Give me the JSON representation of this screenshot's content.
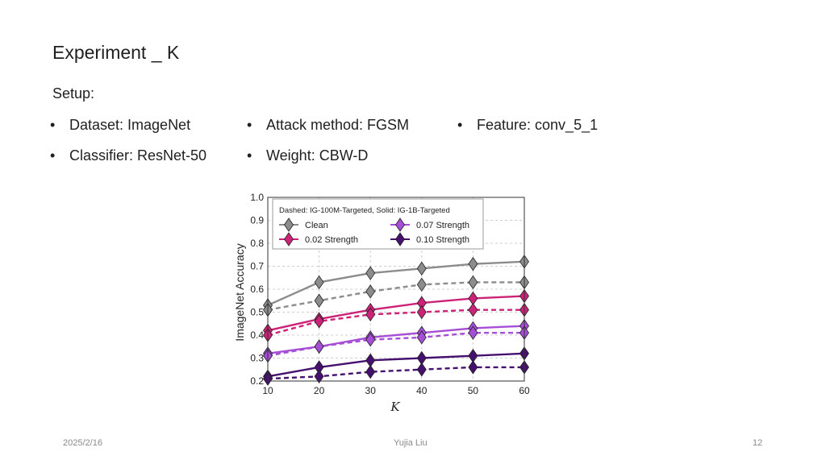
{
  "slide": {
    "title": "Experiment _ K",
    "setup_label": "Setup:",
    "bullet_glyph": "•",
    "bullets": [
      "Dataset: ImageNet",
      "Attack method: FGSM",
      "Feature: conv_5_1",
      "Classifier: ResNet-50",
      "Weight:  CBW-D"
    ]
  },
  "footer": {
    "date": "2025/2/16",
    "author": "Yujia Liu",
    "page": "12"
  },
  "chart_data": {
    "type": "line",
    "xlabel": "K",
    "ylabel": "ImageNet Accuracy",
    "x": [
      10,
      20,
      30,
      40,
      50,
      60
    ],
    "xlim": [
      10,
      60
    ],
    "ylim": [
      0.2,
      1.0
    ],
    "xticks": [
      "10",
      "20",
      "30",
      "40",
      "50",
      "60"
    ],
    "yticks": [
      "0.2",
      "0.3",
      "0.4",
      "0.5",
      "0.6",
      "0.7",
      "0.8",
      "0.9",
      "1.0"
    ],
    "grid": true,
    "legend_placement": "top",
    "legend_title": "Dashed: IG-100M-Targeted, Solid: IG-1B-Targeted",
    "legend_labels": [
      "Clean",
      "0.07 Strength",
      "0.02 Strength",
      "0.10 Strength"
    ],
    "series_styles": [
      {
        "key": "clean",
        "color": "#8c8c8c"
      },
      {
        "key": "s002",
        "color": "#cc2277"
      },
      {
        "key": "s007",
        "color": "#a64fd6"
      },
      {
        "key": "s010",
        "color": "#45106e"
      }
    ],
    "series": [
      {
        "style": "clean",
        "dashed": false,
        "values": [
          0.53,
          0.63,
          0.67,
          0.69,
          0.71,
          0.72
        ]
      },
      {
        "style": "clean",
        "dashed": true,
        "values": [
          0.51,
          0.55,
          0.59,
          0.62,
          0.63,
          0.63
        ]
      },
      {
        "style": "s002",
        "dashed": false,
        "values": [
          0.42,
          0.47,
          0.51,
          0.54,
          0.56,
          0.57
        ]
      },
      {
        "style": "s002",
        "dashed": true,
        "values": [
          0.4,
          0.46,
          0.49,
          0.5,
          0.51,
          0.51
        ]
      },
      {
        "style": "s007",
        "dashed": false,
        "values": [
          0.32,
          0.35,
          0.39,
          0.41,
          0.43,
          0.44
        ]
      },
      {
        "style": "s007",
        "dashed": true,
        "values": [
          0.31,
          0.35,
          0.38,
          0.39,
          0.41,
          0.41
        ]
      },
      {
        "style": "s010",
        "dashed": false,
        "values": [
          0.22,
          0.26,
          0.29,
          0.3,
          0.31,
          0.32
        ]
      },
      {
        "style": "s010",
        "dashed": true,
        "values": [
          0.21,
          0.22,
          0.24,
          0.25,
          0.26,
          0.26
        ]
      }
    ]
  }
}
